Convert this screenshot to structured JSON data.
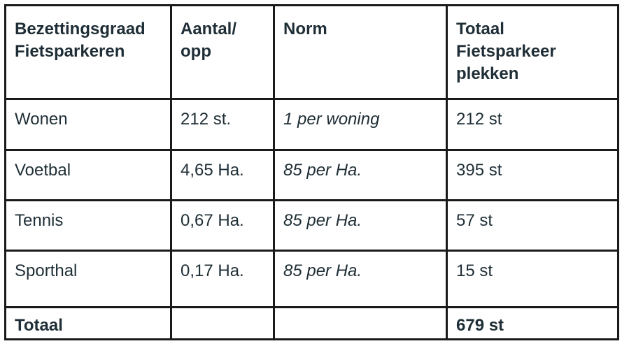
{
  "table": {
    "header": {
      "col1": "Bezettingsgraad\nFietsparkeren",
      "col2": "Aantal/\nopp",
      "col3": "Norm",
      "col4": "Totaal\nFietsparkeer\nplekken"
    },
    "rows": [
      {
        "category": "Wonen",
        "amount": "212 st.",
        "norm": "1 per woning",
        "total": "212 st"
      },
      {
        "category": "Voetbal",
        "amount": "4,65 Ha.",
        "norm": "85 per Ha.",
        "total": "395 st"
      },
      {
        "category": "Tennis",
        "amount": "0,67 Ha.",
        "norm": "85 per Ha.",
        "total": "57 st"
      },
      {
        "category": "Sporthal",
        "amount": "0,17 Ha.",
        "norm": "85 per Ha.",
        "total": "15 st"
      }
    ],
    "totals": {
      "label": "Totaal",
      "amount": "",
      "norm": "",
      "total": "679 st"
    }
  }
}
